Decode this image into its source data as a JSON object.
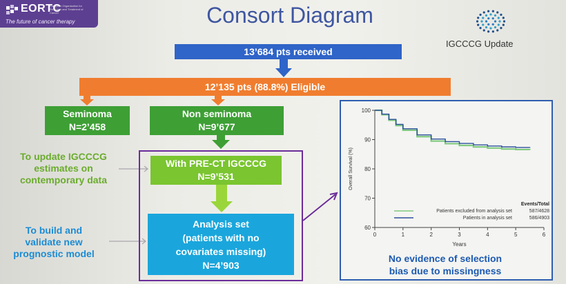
{
  "logo": {
    "name": "EORTC",
    "small_text": "European Organisation for Research and Treatment of Cancer",
    "tagline": "The future of cancer therapy"
  },
  "slide_title": "Consort Diagram",
  "badge": {
    "label": "IGCCCG Update"
  },
  "flow": {
    "received": "13’684 pts received",
    "eligible": "12’135 pts (88.8%) Eligible",
    "seminoma": {
      "line1": "Seminoma",
      "line2": "N=2’458"
    },
    "non_seminoma": {
      "line1": "Non seminoma",
      "line2": "N=9’677"
    },
    "pre_ct": {
      "line1": "With PRE-CT IGCCCG",
      "line2": "N=9’531"
    },
    "analysis": {
      "line1": "Analysis set",
      "line2": "(patients with no",
      "line3": "covariates missing)",
      "line4": "N=4’903"
    }
  },
  "annotations": {
    "update": {
      "line1": "To update IGCCCG",
      "line2": "estimates on",
      "line3": "contemporary data"
    },
    "build": {
      "line1": "To build and",
      "line2": "validate new",
      "line3": "prognostic model"
    }
  },
  "colors": {
    "received": "#2f64c8",
    "eligible": "#f07d2f",
    "green_dark": "#3e9f35",
    "green_light": "#7ac530",
    "analysis": "#1aa6dc",
    "purple": "#6b2d9a",
    "chart_frame": "#2e5daf"
  },
  "chart_data": {
    "type": "line",
    "xlabel": "Years",
    "ylabel": "Overall Survival (%)",
    "xlim": [
      0,
      6
    ],
    "ylim": [
      60,
      100
    ],
    "x_ticks": [
      0,
      1,
      2,
      3,
      4,
      5,
      6
    ],
    "y_ticks": [
      60,
      70,
      80,
      90,
      100
    ],
    "legend_title": "Events/Total",
    "legend_placement": "bottom-right",
    "series": [
      {
        "name": "Patients excluded from analysis set",
        "events": "587/4628",
        "color": "#7fc97f",
        "x": [
          0,
          0.25,
          0.5,
          0.75,
          1,
          1.5,
          2,
          2.5,
          3,
          3.5,
          4,
          4.5,
          5,
          5.5
        ],
        "y": [
          100,
          98.5,
          96.6,
          94.8,
          93.2,
          91,
          89.5,
          88.6,
          88,
          87.5,
          87.1,
          86.8,
          86.6,
          86.5
        ]
      },
      {
        "name": "Patients in analysis set",
        "events": "586/4903",
        "color": "#2b4f9a",
        "x": [
          0,
          0.25,
          0.5,
          0.75,
          1,
          1.5,
          2,
          2.5,
          3,
          3.5,
          4,
          4.5,
          5,
          5.5
        ],
        "y": [
          100,
          98.7,
          96.9,
          95.2,
          93.7,
          91.6,
          90.2,
          89.3,
          88.7,
          88.2,
          87.8,
          87.5,
          87.3,
          87.2
        ]
      }
    ]
  },
  "caption": {
    "line1": "No evidence of selection",
    "line2": "bias due to missingness"
  }
}
